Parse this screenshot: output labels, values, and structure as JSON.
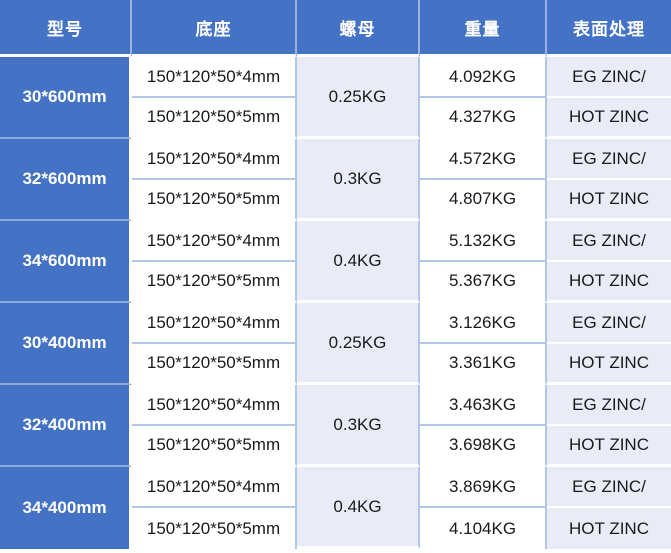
{
  "colors": {
    "header_blue": "#4472C4",
    "light_cell": "#E9ECF7",
    "grid_line": "#B4C6E7",
    "group_divider_on_blue": "#8EA9DB",
    "header_divider": "#9DB2DC",
    "header_text": "#FFFFFF",
    "body_text": "#1A1A1A"
  },
  "table": {
    "columns": [
      {
        "label": "型号"
      },
      {
        "label": "底座"
      },
      {
        "label": "螺母"
      },
      {
        "label": "重量"
      },
      {
        "label": "表面处理"
      }
    ],
    "groups": [
      {
        "model": "30*600mm",
        "nut": "0.25KG",
        "rows": [
          {
            "base": "150*120*50*4mm",
            "weight": "4.092KG",
            "surface": "EG ZINC/"
          },
          {
            "base": "150*120*50*5mm",
            "weight": "4.327KG",
            "surface": "HOT ZINC"
          }
        ]
      },
      {
        "model": "32*600mm",
        "nut": "0.3KG",
        "rows": [
          {
            "base": "150*120*50*4mm",
            "weight": "4.572KG",
            "surface": "EG ZINC/"
          },
          {
            "base": "150*120*50*5mm",
            "weight": "4.807KG",
            "surface": "HOT ZINC"
          }
        ]
      },
      {
        "model": "34*600mm",
        "nut": "0.4KG",
        "rows": [
          {
            "base": "150*120*50*4mm",
            "weight": "5.132KG",
            "surface": "EG ZINC/"
          },
          {
            "base": "150*120*50*5mm",
            "weight": "5.367KG",
            "surface": "HOT ZINC"
          }
        ]
      },
      {
        "model": "30*400mm",
        "nut": "0.25KG",
        "rows": [
          {
            "base": "150*120*50*4mm",
            "weight": "3.126KG",
            "surface": "EG ZINC/"
          },
          {
            "base": "150*120*50*5mm",
            "weight": "3.361KG",
            "surface": "HOT ZINC"
          }
        ]
      },
      {
        "model": "32*400mm",
        "nut": "0.3KG",
        "rows": [
          {
            "base": "150*120*50*4mm",
            "weight": "3.463KG",
            "surface": "EG ZINC/"
          },
          {
            "base": "150*120*50*5mm",
            "weight": "3.698KG",
            "surface": "HOT ZINC"
          }
        ]
      },
      {
        "model": "34*400mm",
        "nut": "0.4KG",
        "rows": [
          {
            "base": "150*120*50*4mm",
            "weight": "3.869KG",
            "surface": "EG ZINC/"
          },
          {
            "base": "150*120*50*5mm",
            "weight": "4.104KG",
            "surface": "HOT ZINC"
          }
        ]
      }
    ]
  }
}
